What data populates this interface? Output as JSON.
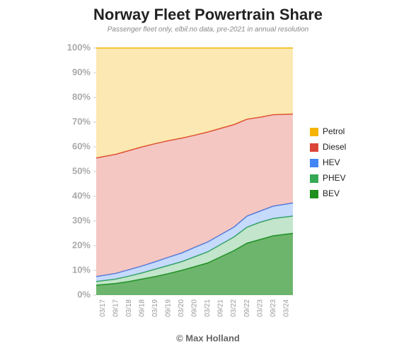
{
  "chart_data": {
    "type": "stacked_area",
    "title": "Norway Fleet Powertrain Share",
    "subtitle": "Passenger fleet only, elbil.no data, pre-2021 in annual resolution",
    "footer": "© Max Holland",
    "categories": [
      "03/17",
      "09/17",
      "03/18",
      "09/18",
      "03/19",
      "09/19",
      "03/20",
      "09/20",
      "03/21",
      "09/21",
      "03/22",
      "09/22",
      "03/23",
      "09/23",
      "03/24"
    ],
    "series": [
      {
        "name": "BEV",
        "color": "#1e8e1e",
        "values": [
          4,
          4.7,
          5.5,
          6.5,
          7.5,
          8.7,
          10,
          11.5,
          13,
          15.5,
          18,
          21,
          22.5,
          24,
          25
        ]
      },
      {
        "name": "PHEV",
        "color": "#34a853",
        "values": [
          1.5,
          1.8,
          2.2,
          2.5,
          3,
          3.3,
          3.5,
          4,
          4.5,
          5,
          5.5,
          6.5,
          7,
          7,
          7
        ]
      },
      {
        "name": "HEV",
        "color": "#4285f4",
        "values": [
          2,
          2.3,
          2.6,
          2.8,
          3,
          3.3,
          3.5,
          3.8,
          4,
          4,
          4,
          4.5,
          4.5,
          5,
          5.3
        ]
      },
      {
        "name": "Diesel",
        "color": "#db4437",
        "values": [
          48,
          48.2,
          48.2,
          48.2,
          47.8,
          47.2,
          46.5,
          45.4,
          44.5,
          43,
          41.5,
          39.2,
          38,
          37,
          36
        ]
      },
      {
        "name": "Petrol",
        "color": "#f4b400",
        "values": [
          44.5,
          43,
          41.5,
          40,
          38.7,
          37.5,
          36.5,
          35.3,
          34,
          32.5,
          31,
          28.8,
          28,
          27,
          26.7
        ]
      }
    ],
    "ylim": [
      0,
      100
    ],
    "yticks": [
      {
        "value": 0,
        "label": "0%"
      },
      {
        "value": 10,
        "label": "10%"
      },
      {
        "value": 20,
        "label": "20%"
      },
      {
        "value": 30,
        "label": "30%"
      },
      {
        "value": 40,
        "label": "40%"
      },
      {
        "value": 50,
        "label": "50%"
      },
      {
        "value": 60,
        "label": "60%"
      },
      {
        "value": 70,
        "label": "70%"
      },
      {
        "value": 80,
        "label": "80%"
      },
      {
        "value": 90,
        "label": "90%"
      },
      {
        "value": 100,
        "label": "100%"
      }
    ],
    "legend": "right"
  }
}
